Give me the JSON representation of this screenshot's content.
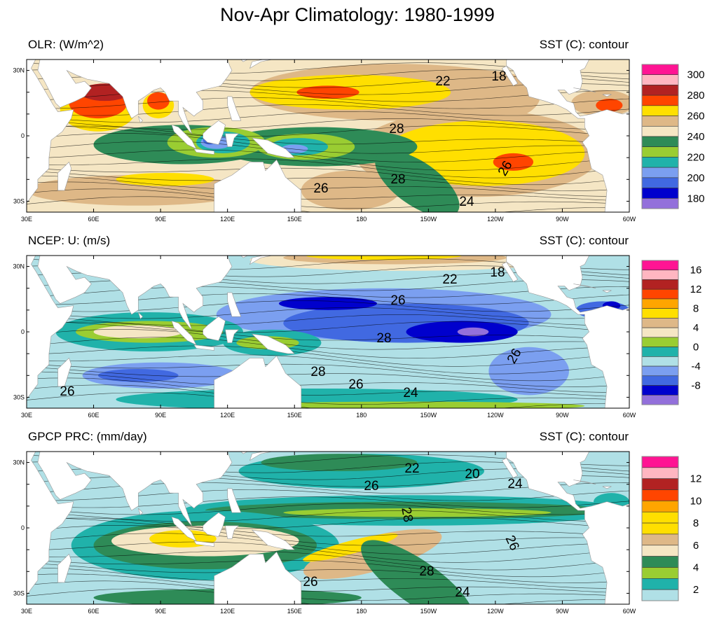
{
  "title": "Nov-Apr Climatology: 1980-1999",
  "colors": {
    "deeppink": "#ff1493",
    "lightpink": "#ffb6c1",
    "firebrick": "#b22222",
    "orangered": "#ff4500",
    "orange": "#ffa500",
    "gold": "#ffdf00",
    "tan": "#deb887",
    "wheat": "#f5e6c4",
    "seagreen": "#2e8b57",
    "yellowgreen": "#9acd32",
    "teal": "#20b2aa",
    "powderblue": "#b0e0e6",
    "cornflower": "#7b9ff0",
    "royalblue": "#4169e1",
    "mediumblue": "#0000cd",
    "purple": "#9370db",
    "land": "#ffffff",
    "contour": "#000000"
  },
  "panels": [
    {
      "left_title": "OLR: (W/m^2)",
      "right_title": "SST (C): contour",
      "contour_labels": [
        "22",
        "18",
        "28",
        "26",
        "28",
        "26",
        "24"
      ],
      "colorbar": {
        "boxes": [
          "deeppink",
          "lightpink",
          "firebrick",
          "orangered",
          "gold",
          "tan",
          "wheat",
          "seagreen",
          "yellowgreen",
          "teal",
          "cornflower",
          "royalblue",
          "mediumblue",
          "purple"
        ],
        "labels": [
          "300",
          "280",
          "260",
          "240",
          "220",
          "200",
          "180"
        ]
      }
    },
    {
      "left_title": "NCEP: U: (m/s)",
      "right_title": "SST (C): contour",
      "contour_labels": [
        "22",
        "18",
        "26",
        "28",
        "26",
        "28",
        "26",
        "24",
        "26"
      ],
      "colorbar": {
        "boxes": [
          "deeppink",
          "lightpink",
          "firebrick",
          "orangered",
          "orange",
          "gold",
          "tan",
          "wheat",
          "yellowgreen",
          "teal",
          "powderblue",
          "cornflower",
          "royalblue",
          "mediumblue",
          "purple"
        ],
        "labels": [
          "16",
          "12",
          "8",
          "4",
          "0",
          "-4",
          "-8"
        ]
      }
    },
    {
      "left_title": "GPCP PRC: (mm/day)",
      "right_title": "SST (C): contour",
      "contour_labels": [
        "22",
        "20",
        "26",
        "24",
        "28",
        "26",
        "28",
        "26",
        "24"
      ],
      "colorbar": {
        "boxes": [
          "deeppink",
          "lightpink",
          "firebrick",
          "orangered",
          "orange",
          "gold",
          "gold",
          "tan",
          "wheat",
          "seagreen",
          "yellowgreen",
          "teal",
          "powderblue"
        ],
        "labels": [
          "12",
          "10",
          "8",
          "6",
          "4",
          "2"
        ]
      }
    }
  ],
  "axes": {
    "lon_ticks": [
      "30E",
      "60E",
      "90E",
      "120E",
      "150E",
      "180",
      "150W",
      "120W",
      "90W",
      "60W"
    ],
    "lat_ticks": [
      "30N",
      "0",
      "30S"
    ],
    "lon_range": [
      30,
      300
    ],
    "lat_range": [
      -35,
      35
    ]
  }
}
